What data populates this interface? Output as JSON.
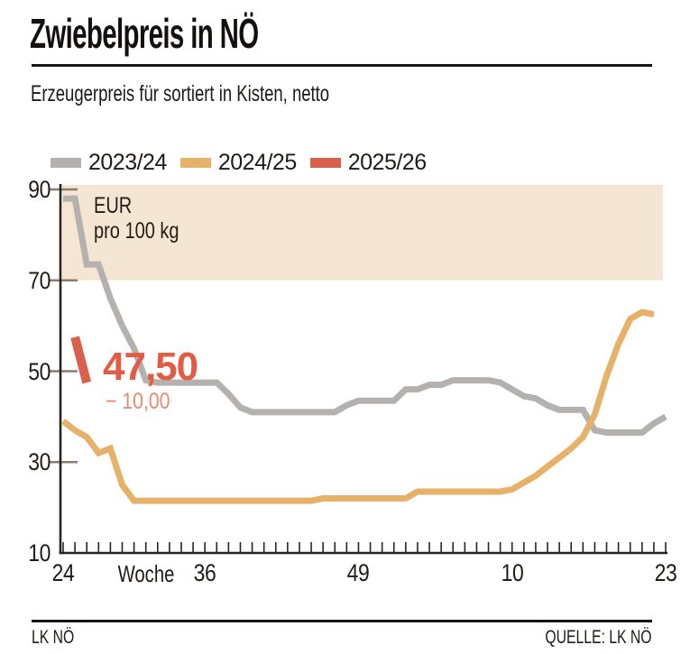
{
  "header": {
    "title": "Zwiebelpreis in NÖ",
    "subtitle": "Erzeugerpreis für sortiert in Kisten, netto"
  },
  "legend": [
    {
      "label": "2023/24",
      "color": "#b5b1ae"
    },
    {
      "label": "2024/25",
      "color": "#e6b168"
    },
    {
      "label": "2025/26",
      "color": "#d8604c"
    }
  ],
  "chart_data": {
    "type": "line",
    "title": "Zwiebelpreis in NÖ",
    "unit_label_line1": "EUR",
    "unit_label_line2": "pro 100 kg",
    "x_axis": {
      "word": "Woche",
      "weeks_total": 52,
      "first_week": 24,
      "ticks": [
        {
          "label": "24",
          "index": 0
        },
        {
          "label": "36",
          "index": 12
        },
        {
          "label": "49",
          "index": 25
        },
        {
          "label": "10",
          "index": 38
        },
        {
          "label": "23",
          "index": 51
        }
      ]
    },
    "y_axis": {
      "ticks": [
        90,
        70,
        50,
        30,
        10
      ],
      "range": [
        10,
        91
      ],
      "grid": false
    },
    "band": {
      "from": 70,
      "to": 91,
      "color": "#f5e6d3"
    },
    "series": [
      {
        "name": "2023/24",
        "color": "#b5b1ae",
        "start_index": 0,
        "values": [
          88,
          88,
          73.5,
          73.5,
          66,
          60,
          55,
          48,
          47.5,
          47.5,
          47.5,
          47.5,
          47.5,
          47.5,
          45,
          42,
          41,
          41,
          41,
          41,
          41,
          41,
          41,
          41,
          42.5,
          43.5,
          43.5,
          43.5,
          43.5,
          46,
          46,
          47,
          47,
          48,
          48,
          48,
          48,
          47.5,
          46,
          44.5,
          44,
          42.5,
          41.5,
          41.5,
          41.5,
          37,
          36.5,
          36.5,
          36.5,
          36.5,
          38.5,
          40
        ]
      },
      {
        "name": "2024/25",
        "color": "#e6b168",
        "start_index": 0,
        "values": [
          39,
          37,
          35.5,
          32,
          33,
          25,
          21.5,
          21.5,
          21.5,
          21.5,
          21.5,
          21.5,
          21.5,
          21.5,
          21.5,
          21.5,
          21.5,
          21.5,
          21.5,
          21.5,
          21.5,
          21.5,
          22,
          22,
          22,
          22,
          22,
          22,
          22,
          22,
          23.5,
          23.5,
          23.5,
          23.5,
          23.5,
          23.5,
          23.5,
          23.5,
          24,
          25.5,
          27,
          29,
          31,
          33,
          35.5,
          40.5,
          49,
          56,
          61.5,
          63,
          62.5
        ]
      },
      {
        "name": "2025/26",
        "color": "#d8604c",
        "start_index": 1,
        "values": [
          57.5,
          47.5
        ]
      }
    ],
    "annotation": {
      "value_label": "47,50",
      "change_label": "− 10,00",
      "value_color": "#e25c44",
      "change_color": "#e98a72"
    },
    "legend_position": "top"
  },
  "footer": {
    "left": "LK NÖ",
    "right": "QUELLE: LK NÖ"
  }
}
